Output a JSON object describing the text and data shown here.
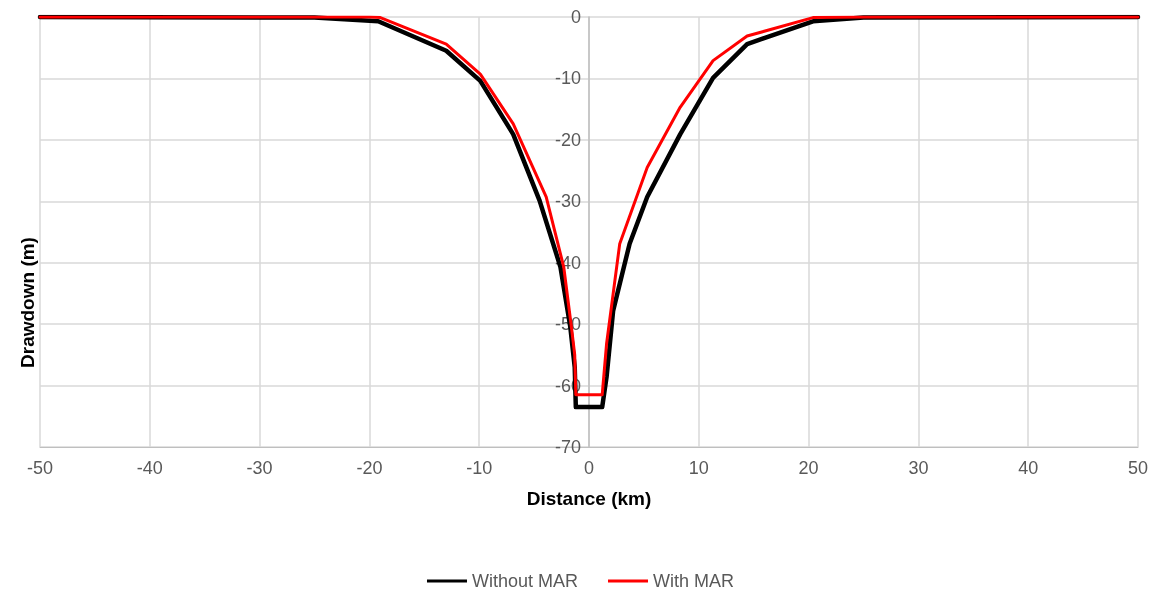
{
  "chart_data": {
    "type": "line",
    "xlabel": "Distance (km)",
    "ylabel": "Drawdown (m)",
    "xlim": [
      -50,
      50
    ],
    "xticks": [
      -50,
      -40,
      -30,
      -20,
      -10,
      0,
      10,
      20,
      30,
      40,
      50
    ],
    "ylim": [
      -70,
      0
    ],
    "yticks": [
      -70,
      -60,
      -50,
      -40,
      -30,
      -20,
      -10,
      0
    ],
    "grid": true,
    "legend": "bottom",
    "marker": "none",
    "line_style": "solid",
    "series": [
      {
        "name": "Without MAR",
        "color": "#000000",
        "x": [
          -50,
          -25,
          -19.2,
          -13,
          -9.9,
          -6.9,
          -4.5,
          -2.6,
          -1.7,
          -1.3,
          -1.2,
          1.2,
          1.6,
          2.2,
          3.7,
          5.3,
          8.3,
          11.3,
          14.4,
          20.4,
          25,
          50
        ],
        "values": [
          0,
          -0.1,
          -0.7,
          -5.5,
          -10.4,
          -19.1,
          -29.9,
          -40.7,
          -50.5,
          -57,
          -63.5,
          -63.5,
          -58.6,
          -47.8,
          -36.9,
          -29.3,
          -19.1,
          -9.9,
          -4.4,
          -0.7,
          -0.1,
          0
        ]
      },
      {
        "name": "With MAR",
        "color": "#ff0000",
        "x": [
          -50,
          -20,
          -19,
          -13,
          -9.9,
          -6.9,
          -3.9,
          -2.3,
          -1.6,
          -1.3,
          -1.2,
          1.2,
          1.6,
          2.8,
          5.3,
          8.3,
          11.3,
          14.4,
          20.4,
          25,
          50
        ],
        "values": [
          0,
          0,
          -0.1,
          -4.4,
          -9.3,
          -17.4,
          -29.3,
          -40.7,
          -50.5,
          -55,
          -61.5,
          -61.5,
          -53.2,
          -36.9,
          -24.5,
          -14.7,
          -7.1,
          -3.1,
          -0.1,
          0,
          0
        ]
      }
    ]
  }
}
